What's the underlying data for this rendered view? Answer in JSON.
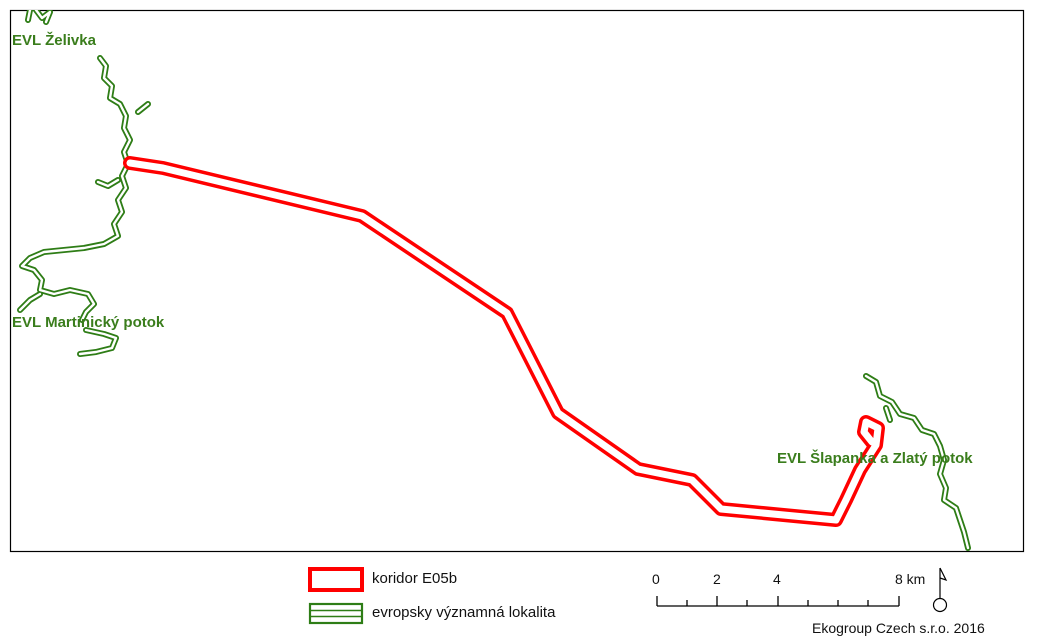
{
  "colors": {
    "corridor": "#ff0000",
    "site": "#2e7d16",
    "site_label": "#3a7d1c",
    "frame": "#000000"
  },
  "map": {
    "site_labels": {
      "zelivka": "EVL Želivka",
      "martinicky": "EVL Martinický potok",
      "slapanka": "EVL Šlapanka a Zlatý potok"
    }
  },
  "legend": {
    "corridor": "koridor E05b",
    "site": "evropsky významná lokalita"
  },
  "scale_bar": {
    "ticks": [
      "0",
      "2",
      "4",
      "8 km"
    ]
  },
  "north_arrow_icon": "north-arrow-icon",
  "credit": "Ekogroup Czech s.r.o. 2016"
}
